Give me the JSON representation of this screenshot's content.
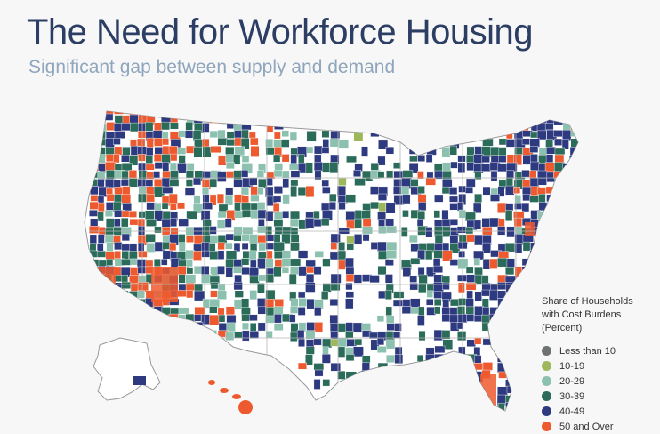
{
  "header": {
    "title": "The Need for Workforce Housing",
    "subtitle": "Significant gap between supply and demand"
  },
  "legend": {
    "title_lines": [
      "Share of Households",
      "with Cost Burdens",
      "(Percent)"
    ],
    "items": [
      {
        "label": "Less than 10",
        "color": "#6f7370"
      },
      {
        "label": "10-19",
        "color": "#9cb85a"
      },
      {
        "label": "20-29",
        "color": "#8cc1b0"
      },
      {
        "label": "30-39",
        "color": "#2b6b5a"
      },
      {
        "label": "40-49",
        "color": "#2e3a80"
      },
      {
        "label": "50 and Over",
        "color": "#ee5a2f"
      }
    ]
  },
  "map": {
    "base_color": "#ffffff",
    "border_color": "#9a9a9a"
  }
}
